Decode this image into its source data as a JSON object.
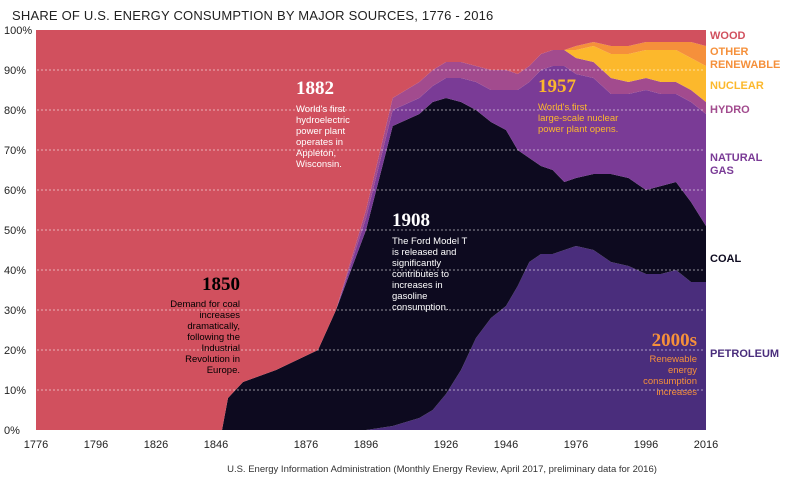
{
  "chart_data": {
    "type": "area",
    "title": "SHARE OF U.S. ENERGY CONSUMPTION BY MAJOR SOURCES, 1776 - 2016",
    "source": "U.S. Energy Information Administration (Monthly Energy Review, April 2017, preliminary data for 2016)",
    "x_ticks": [
      "1776",
      "1796",
      "1826",
      "1846",
      "1876",
      "1896",
      "1926",
      "1946",
      "1976",
      "1996",
      "2016"
    ],
    "y_ticks": [
      "0%",
      "10%",
      "20%",
      "30%",
      "40%",
      "50%",
      "60%",
      "70%",
      "80%",
      "90%",
      "100%"
    ],
    "ylim": [
      0,
      100
    ],
    "x": [
      1776,
      1848,
      1850,
      1855,
      1866,
      1880,
      1886,
      1896,
      1906,
      1916,
      1921,
      1926,
      1931,
      1936,
      1941,
      1946,
      1951,
      1956,
      1961,
      1966,
      1971,
      1976,
      1981,
      1986,
      1991,
      1996,
      2001,
      2006,
      2011,
      2016
    ],
    "series": [
      {
        "name": "PETROLEUM",
        "color": "#4a2d7c",
        "values": [
          0,
          0,
          0,
          0,
          0,
          0,
          0,
          0,
          1,
          3,
          5,
          9,
          15,
          23,
          28,
          31,
          36,
          42,
          44,
          44,
          45,
          46,
          45,
          42,
          41,
          39,
          39,
          40,
          37,
          37
        ]
      },
      {
        "name": "COAL",
        "color": "#0d0a1f",
        "values": [
          0,
          0,
          8,
          12,
          15,
          20,
          30,
          50,
          75,
          76,
          77,
          74,
          67,
          57,
          49,
          44,
          34,
          26,
          22,
          21,
          17,
          17,
          19,
          22,
          22,
          21,
          22,
          22,
          20,
          14
        ]
      },
      {
        "name": "NATURAL GAS",
        "color": "#7a3b96",
        "values": [
          0,
          0,
          0,
          0,
          0,
          0,
          0,
          3,
          4,
          4,
          4,
          5,
          6,
          7,
          8,
          10,
          15,
          19,
          24,
          26,
          29,
          26,
          24,
          20,
          21,
          25,
          23,
          22,
          25,
          28
        ]
      },
      {
        "name": "HYDRO",
        "color": "#a24b8e",
        "values": [
          0,
          0,
          0,
          0,
          0,
          0,
          0,
          2,
          3,
          4,
          4,
          4,
          4,
          4,
          5,
          5,
          4,
          4,
          4,
          4,
          4,
          4,
          4,
          4,
          3,
          3,
          3,
          3,
          3,
          3
        ]
      },
      {
        "name": "NUCLEAR",
        "color": "#fcb82c",
        "values": [
          0,
          0,
          0,
          0,
          0,
          0,
          0,
          0,
          0,
          0,
          0,
          0,
          0,
          0,
          0,
          0,
          0,
          0,
          0,
          0,
          0,
          2,
          4,
          6,
          7,
          7,
          8,
          8,
          8,
          9
        ]
      },
      {
        "name": "OTHER RENEWABLE",
        "color": "#f5903b",
        "values": [
          0,
          0,
          0,
          0,
          0,
          0,
          0,
          0,
          0,
          0,
          0,
          0,
          0,
          0,
          0,
          0,
          0,
          0,
          0,
          0,
          0,
          1,
          1,
          2,
          2,
          2,
          2,
          2,
          4,
          5
        ]
      },
      {
        "name": "WOOD",
        "color": "#d1505e",
        "values": [
          100,
          100,
          92,
          88,
          85,
          80,
          70,
          45,
          17,
          13,
          10,
          8,
          8,
          9,
          10,
          10,
          11,
          9,
          6,
          5,
          5,
          4,
          3,
          4,
          4,
          3,
          3,
          3,
          3,
          4
        ]
      }
    ],
    "annotations": [
      {
        "year": "1850",
        "text": "Demand for coal increases dramatically, following the Industrial Revolution in Europe."
      },
      {
        "year": "1882",
        "text": "World's first hydroelectric power plant operates in Appleton, Wisconsin."
      },
      {
        "year": "1908",
        "text": "The Ford Model T is released and significantly contributes to increases in gasoline consumption."
      },
      {
        "year": "1957",
        "text": "World's first large-scale nuclear power plant opens."
      },
      {
        "year": "2000s",
        "text": "Renewable energy consumption increases"
      }
    ],
    "legend": [
      {
        "label": "WOOD",
        "color": "#d1505e"
      },
      {
        "label": "OTHER RENEWABLE",
        "color": "#f5903b"
      },
      {
        "label": "NUCLEAR",
        "color": "#fcb82c"
      },
      {
        "label": "HYDRO",
        "color": "#a24b8e"
      },
      {
        "label": "NATURAL GAS",
        "color": "#7a3b96"
      },
      {
        "label": "COAL",
        "color": "#0d0a1f"
      },
      {
        "label": "PETROLEUM",
        "color": "#4a2d7c"
      }
    ],
    "legend_placement": "right",
    "grid": true
  }
}
